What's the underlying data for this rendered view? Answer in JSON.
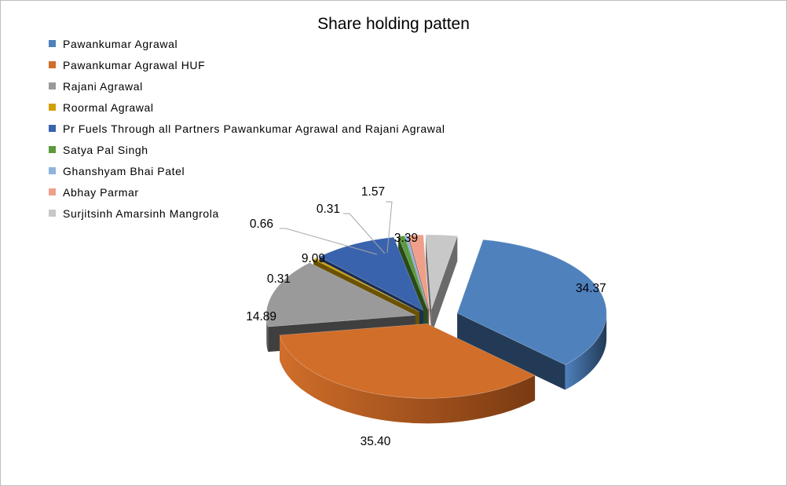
{
  "chart_data": {
    "type": "pie",
    "title": "Share holding patten",
    "legend_position": "top-left",
    "slices": [
      {
        "label": "Pawankumar Agrawal",
        "value": 34.37,
        "display": "34.37",
        "color": "#4f81bd",
        "dark": "#223a55"
      },
      {
        "label": "Pawankumar Agrawal HUF",
        "value": 35.4,
        "display": "35.40",
        "color": "#d06e2a",
        "dark": "#7a3a12"
      },
      {
        "label": "Rajani Agrawal",
        "value": 14.89,
        "display": "14.89",
        "color": "#9a9a9a",
        "dark": "#3f3f3f"
      },
      {
        "label": "Roormal Agrawal",
        "value": 0.31,
        "display": "0.31",
        "color": "#d2a000",
        "dark": "#6b5200"
      },
      {
        "label": "Pr Fuels Through all Partners Pawankumar Agrawal and Rajani Agrawal",
        "value": 9.09,
        "display": "9.09",
        "color": "#3a63ad",
        "dark": "#1a2e55"
      },
      {
        "label": "Satya Pal Singh",
        "value": 0.66,
        "display": "0.66",
        "color": "#5a9a3c",
        "dark": "#2a4a1a"
      },
      {
        "label": "Ghanshyam Bhai Patel",
        "value": 0.31,
        "display": "0.31",
        "color": "#8fb4de",
        "dark": "#4a6080"
      },
      {
        "label": "Abhay Parmar",
        "value": 1.57,
        "display": "1.57",
        "color": "#f0a08a",
        "dark": "#8a4a3a"
      },
      {
        "label": "Surjitsinh Amarsinh Mangrola",
        "value": 3.39,
        "display": "3.39",
        "color": "#c8c8c8",
        "dark": "#6a6a6a"
      }
    ]
  }
}
